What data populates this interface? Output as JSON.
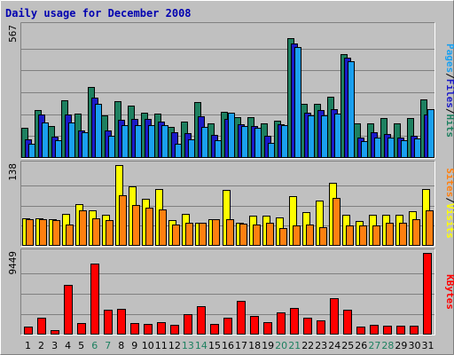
{
  "chart_data": {
    "type": "bar",
    "title": "Daily usage for December 2008",
    "categories": [
      "1",
      "2",
      "3",
      "4",
      "5",
      "6",
      "7",
      "8",
      "9",
      "10",
      "11",
      "12",
      "13",
      "14",
      "15",
      "16",
      "17",
      "18",
      "19",
      "20",
      "21",
      "22",
      "23",
      "24",
      "25",
      "26",
      "27",
      "28",
      "29",
      "30",
      "31"
    ],
    "weekend_days": [
      "6",
      "7",
      "13",
      "14",
      "20",
      "21",
      "27",
      "28"
    ],
    "panels": [
      {
        "name": "hits-files-pages",
        "ymax_label": "567",
        "ylim": [
          0,
          567
        ],
        "side_labels": [
          "Pages",
          "/",
          "Files",
          "/",
          "Hits"
        ],
        "series": [
          {
            "name": "Hits",
            "color": "#1e8060",
            "values": [
              130,
              208,
              138,
              249,
              193,
              307,
              184,
              246,
              227,
              195,
              190,
              133,
              156,
              243,
              150,
              201,
              178,
              178,
              149,
              160,
              517,
              234,
              234,
              266,
              448,
              150,
              150,
              172,
              148,
              173,
              253
            ]
          },
          {
            "name": "Files",
            "color": "#1a1ac8",
            "values": [
              80,
              186,
              93,
              187,
              118,
              262,
              117,
              165,
              170,
              167,
              158,
              110,
              106,
              179,
              101,
              168,
              145,
              138,
              96,
              144,
              493,
              197,
              206,
              212,
              431,
              87,
              110,
              104,
              89,
              97,
              187
            ]
          },
          {
            "name": "Pages",
            "color": "#1aa0f0",
            "values": [
              60,
              152,
              76,
              152,
              110,
              235,
              95,
              140,
              140,
              143,
              143,
              60,
              80,
              135,
              75,
              195,
              138,
              130,
              65,
              142,
              478,
              183,
              183,
              192,
              418,
              74,
              90,
              90,
              78,
              86,
              210
            ]
          }
        ]
      },
      {
        "name": "visits-sites",
        "ymax_label": "138",
        "ylim": [
          0,
          138
        ],
        "side_labels": [
          "Sites",
          "/",
          "Visits"
        ],
        "series": [
          {
            "name": "Visits",
            "color": "#ffff00",
            "values": [
              47,
              47,
              46,
              54,
              72,
              60,
              53,
              138,
              101,
              81,
              97,
              44,
              55,
              40,
              46,
              95,
              40,
              51,
              51,
              48,
              85,
              57,
              78,
              107,
              53,
              43,
              53,
              53,
              53,
              59,
              97
            ]
          },
          {
            "name": "Sites",
            "color": "#ff8010",
            "values": [
              46,
              46,
              44,
              37,
              60,
              47,
              44,
              87,
              70,
              65,
              62,
              36,
              40,
              39,
              45,
              45,
              38,
              37,
              39,
              30,
              35,
              37,
              32,
              82,
              35,
              35,
              35,
              40,
              40,
              45,
              60
            ]
          }
        ]
      },
      {
        "name": "kbytes",
        "ymax_label": "9449",
        "ylim": [
          0,
          9449
        ],
        "side_labels": [
          "KBytes"
        ],
        "series": [
          {
            "name": "KBytes",
            "color": "#ff0000",
            "values": [
              896,
              1936,
              560,
              5714,
              1288,
              8232,
              2856,
              2968,
              1344,
              1232,
              1456,
              1120,
              2352,
              3304,
              1232,
              1960,
              3864,
              2128,
              1456,
              2576,
              3080,
              1960,
              1624,
              4256,
              2912,
              952,
              1176,
              1064,
              1008,
              1064,
              9449
            ]
          }
        ]
      }
    ],
    "colors": {
      "background": "#c0c0c0",
      "panel": "#c0c0c0",
      "gridline": "#808080",
      "title": "#0000b0",
      "weekday_tick": "#000000",
      "weekend_tick": "#1e8060"
    },
    "grid": true
  }
}
